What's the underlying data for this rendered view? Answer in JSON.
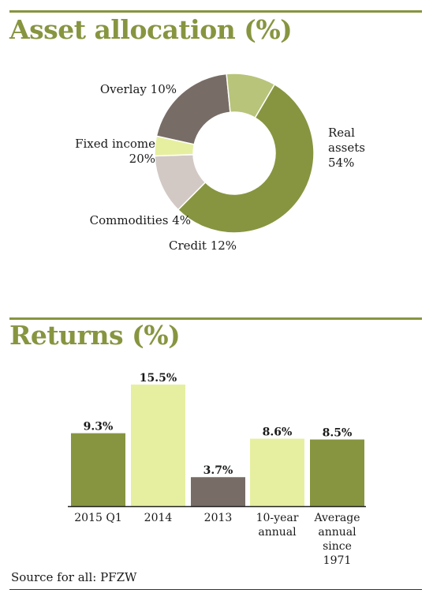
{
  "sections": {
    "allocation_title": "Asset allocation (%)",
    "returns_title": "Returns (%)"
  },
  "source": "Source for all: PFZW",
  "colors": {
    "accent": "#879540",
    "light_green": "#e6efa0",
    "pale_green": "#b8c47a",
    "dark_grey": "#776d66",
    "light_grey": "#d2c9c5"
  },
  "chart_data": [
    {
      "type": "pie",
      "variant": "donut",
      "title": "Asset allocation (%)",
      "slices": [
        {
          "label_lines": [
            "Real",
            "assets",
            "54%"
          ],
          "value": 54,
          "color": "#879540"
        },
        {
          "label_lines": [
            "Credit 12%"
          ],
          "value": 12,
          "color": "#d2c9c5"
        },
        {
          "label_lines": [
            "Commodities 4%"
          ],
          "value": 4,
          "color": "#e6efa0"
        },
        {
          "label_lines": [
            "Fixed income",
            "20%"
          ],
          "value": 20,
          "color": "#776d66"
        },
        {
          "label_lines": [
            "Overlay 10%"
          ],
          "value": 10,
          "color": "#b8c47a"
        }
      ]
    },
    {
      "type": "bar",
      "title": "Returns (%)",
      "categories": [
        [
          "2015 Q1"
        ],
        [
          "2014"
        ],
        [
          "2013"
        ],
        [
          "10-year",
          "annual"
        ],
        [
          "Average",
          "annual",
          "since",
          "1971"
        ]
      ],
      "values": [
        9.3,
        15.5,
        3.7,
        8.6,
        8.5
      ],
      "value_labels": [
        "9.3%",
        "15.5%",
        "3.7%",
        "8.6%",
        "8.5%"
      ],
      "colors": [
        "#879540",
        "#e6efa0",
        "#776d66",
        "#e6efa0",
        "#879540"
      ],
      "ylim": [
        0,
        15.5
      ]
    }
  ]
}
